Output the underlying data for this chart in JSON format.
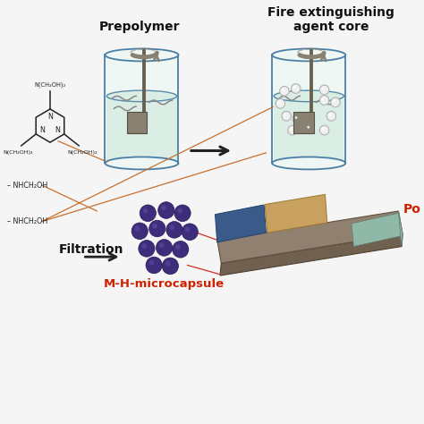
{
  "bg_color": "#f5f5f5",
  "label_prepolymer": "Prepolymer",
  "label_fire": "Fire extinguishing\nagent core",
  "label_filtration": "Filtration",
  "label_microcapsule": "M-H-microcapsule",
  "container_edge_color": "#4a7fa5",
  "liquid_fill_color": "#d8ede4",
  "stirrer_color": "#7a7060",
  "microcapsule_color_purple": "#3d2d7a",
  "red_label_color": "#cc2200",
  "orange_line_color": "#c87030",
  "board_main": "#8a7060",
  "board_top": "#98b8b0",
  "board_blue": "#3a5888",
  "board_tan": "#c8a060",
  "arrow_color": "#333333"
}
